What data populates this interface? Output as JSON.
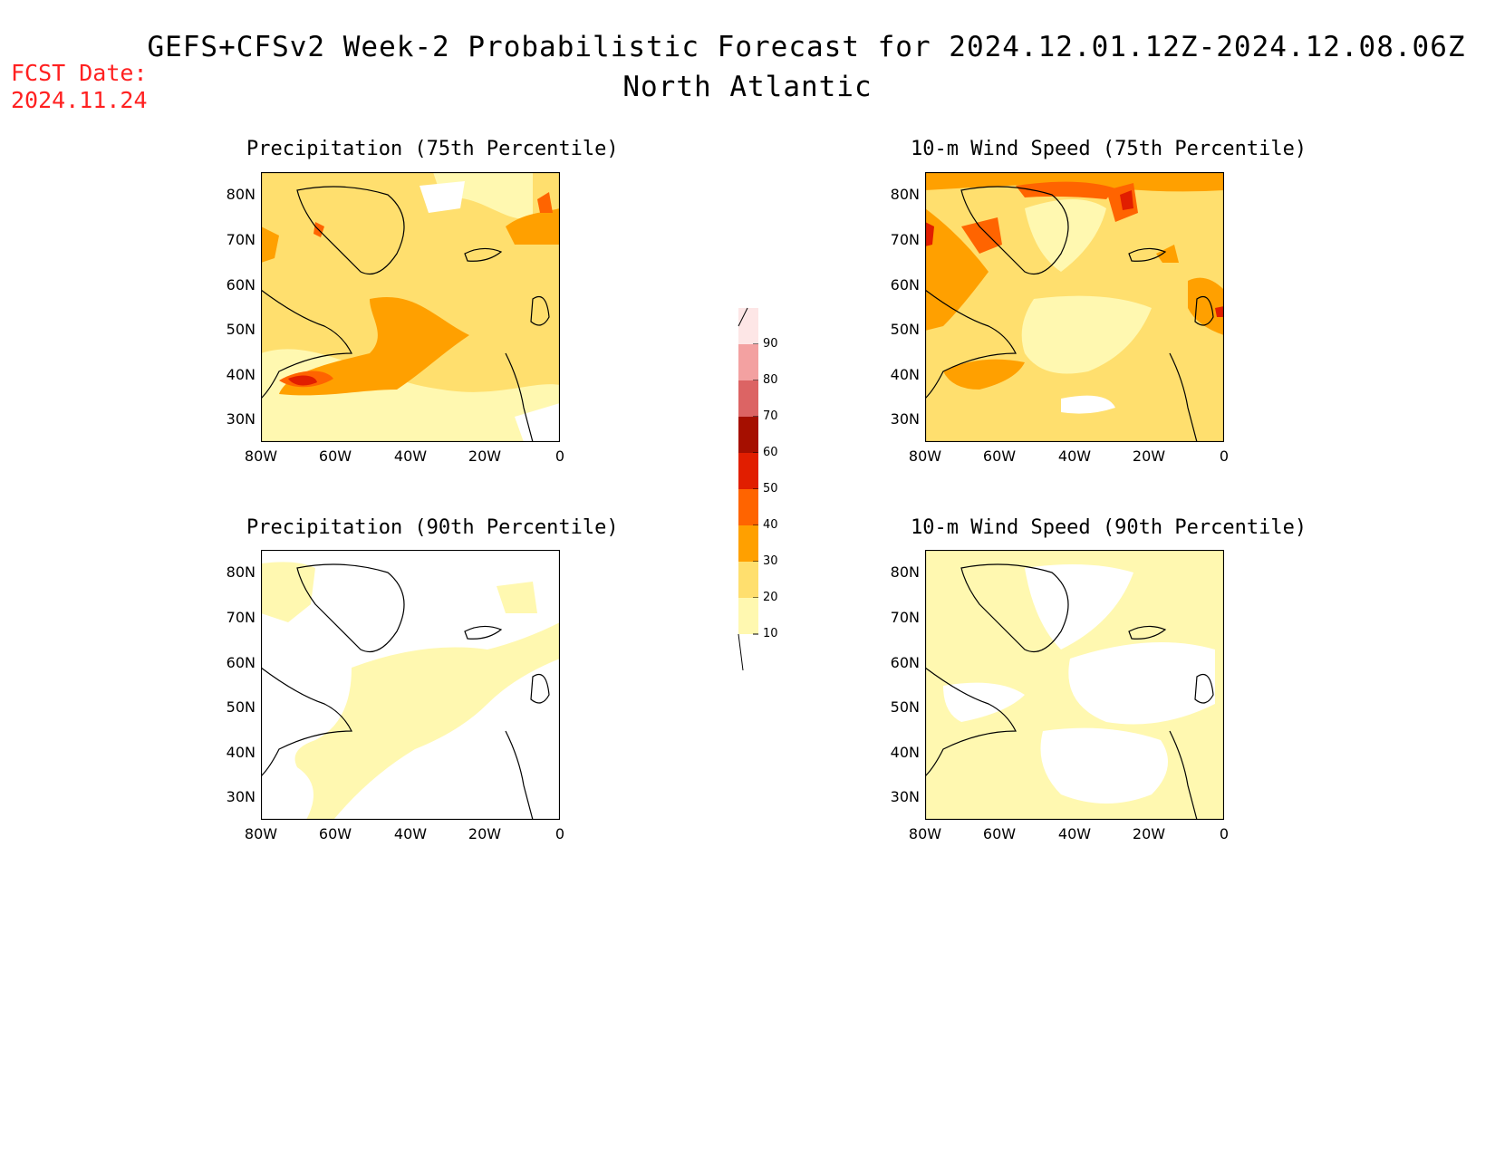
{
  "title_line1": "GEFS+CFSv2 Week-2 Probabilistic Forecast for 2024.12.01.12Z-2024.12.08.06Z",
  "title_line2": "North Atlantic",
  "fcst_date_label": "FCST Date:",
  "fcst_date_value": "2024.11.24",
  "panels": [
    {
      "title": "Precipitation (75th Percentile)"
    },
    {
      "title": "10-m Wind Speed (75th Percentile)"
    },
    {
      "title": "Precipitation (90th Percentile)"
    },
    {
      "title": "10-m Wind Speed (90th Percentile)"
    }
  ],
  "lat_labels": [
    "80N",
    "70N",
    "60N",
    "50N",
    "40N",
    "30N"
  ],
  "lon_labels": [
    "80W",
    "60W",
    "40W",
    "20W",
    "0"
  ],
  "colorbar": {
    "labels": [
      "90",
      "80",
      "70",
      "60",
      "50",
      "40",
      "30",
      "20",
      "10"
    ],
    "colors": [
      "#fde6e6",
      "#f3a1a1",
      "#dc6464",
      "#a50f00",
      "#e11e00",
      "#ff6400",
      "#ffa000",
      "#ffdf6e",
      "#fff8b0"
    ]
  },
  "colors": {
    "c10": "#fff8b0",
    "c20": "#ffdf6e",
    "c30": "#ffa000",
    "c40": "#ff6400",
    "c50": "#e11e00",
    "fcst_red": "#ff2020"
  }
}
